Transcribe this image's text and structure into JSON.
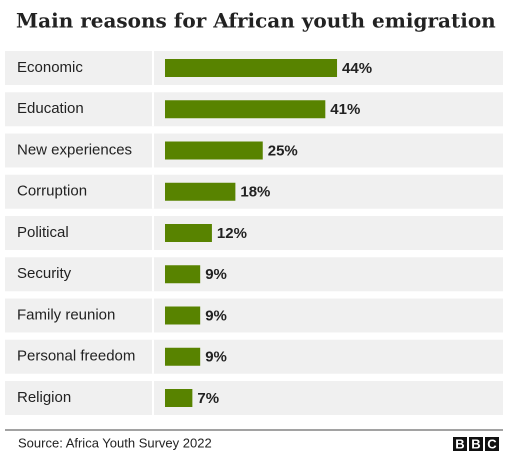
{
  "chart_data": {
    "type": "bar",
    "orientation": "horizontal",
    "title": "Main reasons for African youth emigration",
    "categories": [
      "Economic",
      "Education",
      "New experiences",
      "Corruption",
      "Political",
      "Security",
      "Family reunion",
      "Personal freedom",
      "Religion"
    ],
    "values": [
      44,
      41,
      25,
      18,
      12,
      9,
      9,
      9,
      7
    ],
    "value_labels": [
      "44%",
      "41%",
      "25%",
      "18%",
      "12%",
      "9%",
      "9%",
      "9%",
      "7%"
    ],
    "color": "#588300",
    "source": "Source: Africa Youth Survey 2022",
    "logo": [
      "B",
      "B",
      "C"
    ]
  }
}
